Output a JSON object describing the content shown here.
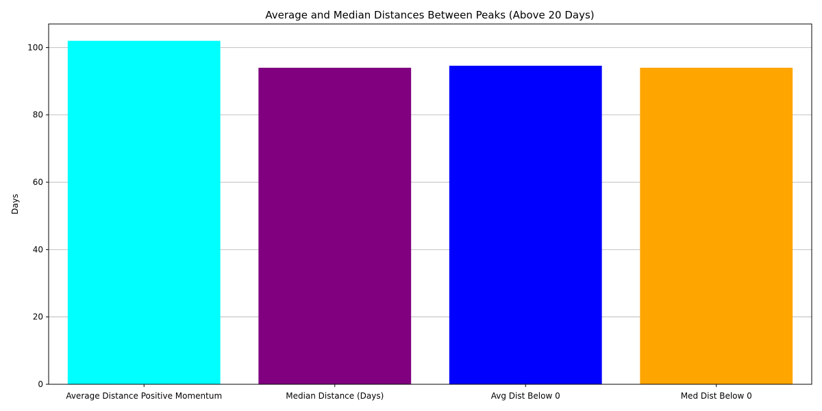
{
  "chart_data": {
    "type": "bar",
    "title": "Average and Median Distances Between Peaks (Above 20 Days)",
    "xlabel": "",
    "ylabel": "Days",
    "categories": [
      "Average Distance Positive Momentum",
      "Median Distance (Days)",
      "Avg Dist Below 0",
      "Med Dist Below 0"
    ],
    "values": [
      102,
      94,
      94.6,
      94
    ],
    "colors": [
      "#00ffff",
      "#800080",
      "#0000ff",
      "#ffa500"
    ],
    "ylim": [
      0,
      107
    ],
    "yticks": [
      0,
      20,
      40,
      60,
      80,
      100
    ],
    "grid": "y"
  }
}
